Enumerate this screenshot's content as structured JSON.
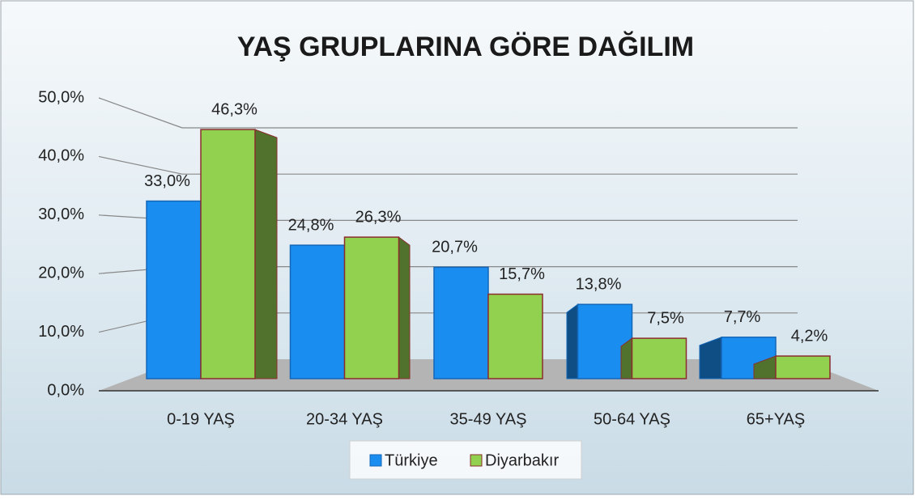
{
  "chart_data": {
    "type": "bar",
    "title": "YAŞ GRUPLARINA GÖRE DAĞILIM",
    "categories": [
      "0-19 YAŞ",
      "20-34 YAŞ",
      "35-49 YAŞ",
      "50-64 YAŞ",
      "65+YAŞ"
    ],
    "series": [
      {
        "name": "Türkiye",
        "color": "#1a8ef0",
        "values": [
          33.0,
          24.8,
          20.7,
          13.8,
          7.7
        ],
        "value_labels": [
          "33,0%",
          "24,8%",
          "20,7%",
          "13,8%",
          "7,7%"
        ]
      },
      {
        "name": "Diyarbakır",
        "color": "#92d050",
        "values": [
          46.3,
          26.3,
          15.7,
          7.5,
          4.2
        ],
        "value_labels": [
          "46,3%",
          "26,3%",
          "15,7%",
          "7,5%",
          "4,2%"
        ]
      }
    ],
    "ylim": [
      0,
      50
    ],
    "yticks": [
      {
        "value": 0,
        "label": "0,0%"
      },
      {
        "value": 10,
        "label": "10,0%"
      },
      {
        "value": 20,
        "label": "20,0%"
      },
      {
        "value": 30,
        "label": "30,0%"
      },
      {
        "value": 40,
        "label": "40,0%"
      },
      {
        "value": 50,
        "label": "50,0%"
      }
    ],
    "grid": true,
    "legend": "bottom"
  }
}
